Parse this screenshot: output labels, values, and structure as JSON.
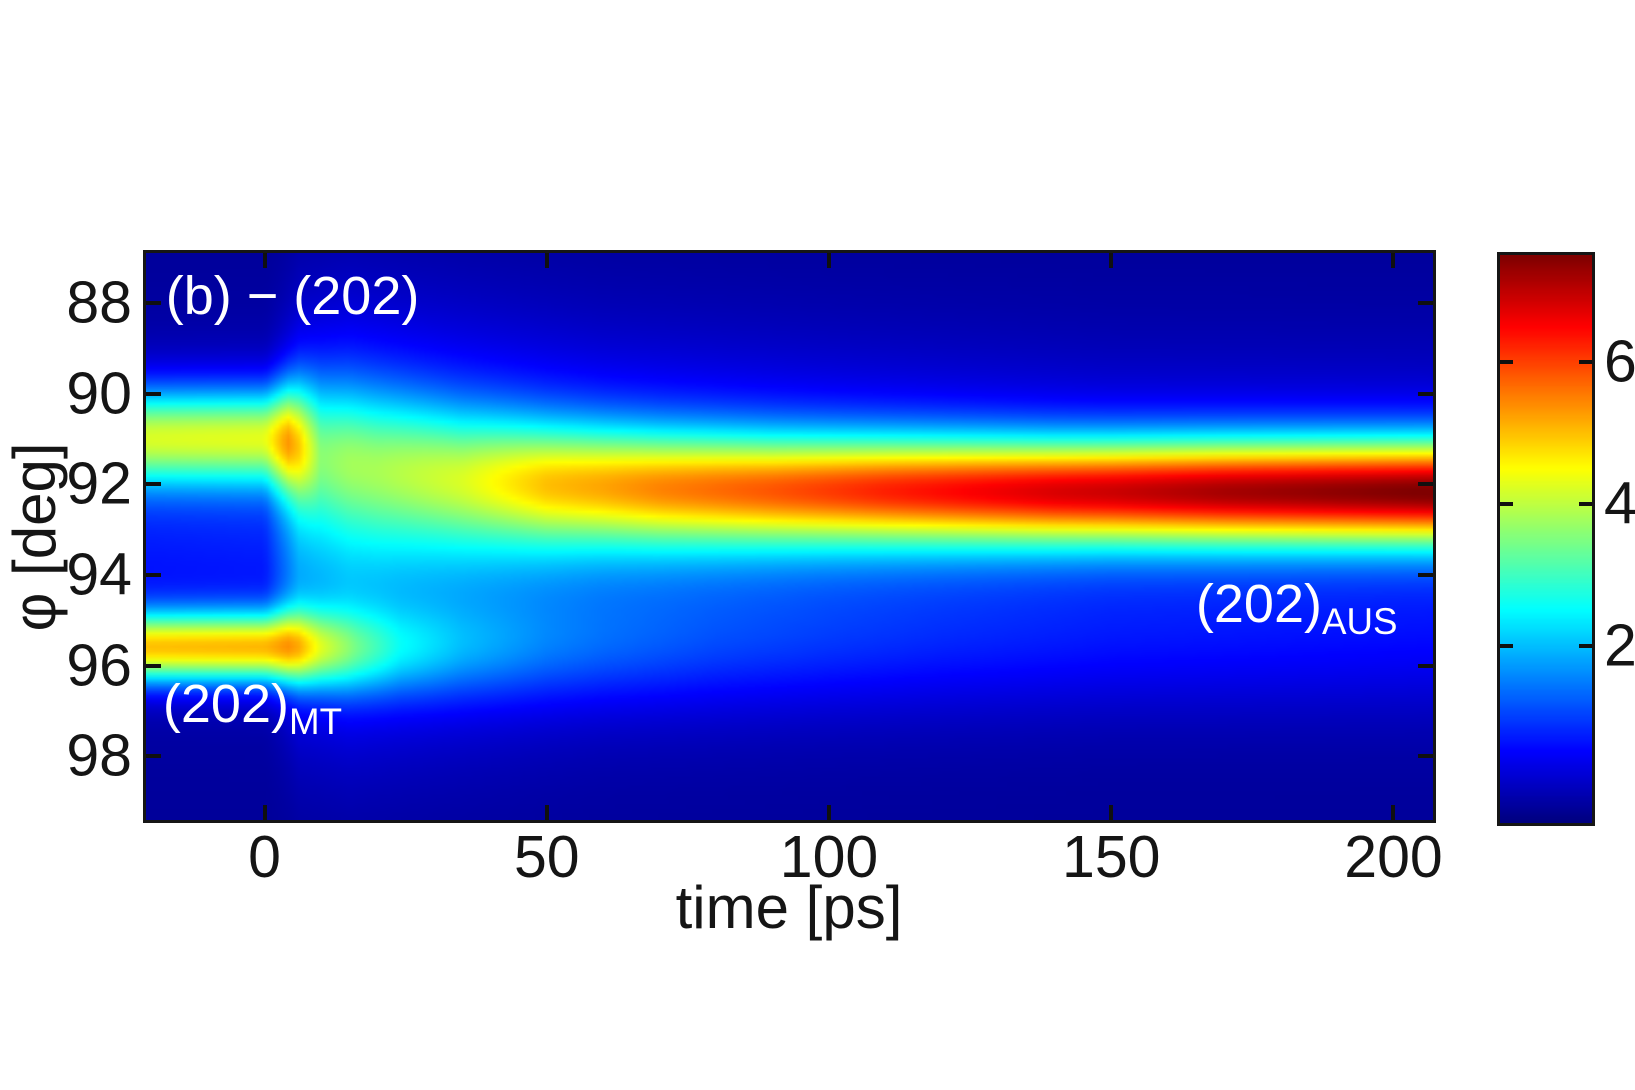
{
  "figure": {
    "background": "#ffffff",
    "frame_color": "#161616",
    "tick_color": "#101010",
    "label_color": "#151515",
    "annotation_color": "#ffffff"
  },
  "chart_data": {
    "type": "heatmap",
    "title_annotation": "(b) − (202)",
    "xlabel": "time [ps]",
    "ylabel": "φ [deg]",
    "x_range_ps": [
      -21,
      207
    ],
    "x_ticks": [
      0,
      50,
      100,
      150,
      200
    ],
    "y_range_deg": [
      86.9,
      99.4
    ],
    "y_ticks": [
      88,
      90,
      92,
      94,
      96,
      98
    ],
    "y_axis_direction": "increases-downward",
    "grid": false,
    "colormap": "jet",
    "colorbar": {
      "position": "right",
      "vmin": -0.5,
      "vmax": 7.5,
      "ticks": [
        6,
        4,
        2
      ]
    },
    "annotations": {
      "title": {
        "text": "(b) − (202)",
        "t_ps": -17.5,
        "phi_deg": 87.25
      },
      "aus": {
        "main": "(202)",
        "sub": "AUS",
        "t_ps": 165,
        "phi_deg": 94.05
      },
      "mt": {
        "main": "(202)",
        "sub": "MT",
        "t_ps": -18,
        "phi_deg": 96.25
      }
    },
    "intensity_model": {
      "description": "I(t,phi) = baseline + sum of Gaussian bands amp*exp(-0.5*((phi-center)/sigma)^2); band parameters linearly interpolated between keyframe times (ps)",
      "baseline": -0.3,
      "bands": [
        {
          "name": "austenite-202-peak",
          "t": [
            -21,
            0,
            4,
            10,
            20,
            35,
            50,
            70,
            90,
            110,
            140,
            170,
            207
          ],
          "center": [
            90.95,
            90.95,
            91.0,
            91.2,
            91.5,
            91.8,
            91.95,
            92.05,
            92.1,
            92.12,
            92.15,
            92.15,
            92.15
          ],
          "sigma": [
            0.75,
            0.75,
            0.85,
            1.05,
            1.08,
            1.0,
            0.92,
            0.87,
            0.84,
            0.82,
            0.8,
            0.8,
            0.8
          ],
          "amp": [
            3.85,
            3.9,
            4.3,
            1.95,
            2.05,
            2.55,
            3.5,
            4.15,
            4.65,
            5.2,
            5.9,
            6.4,
            6.8
          ]
        },
        {
          "name": "martensite-202-peak",
          "t": [
            -21,
            0,
            4,
            10,
            16,
            24,
            35,
            50,
            80,
            120,
            207
          ],
          "center": [
            95.6,
            95.6,
            95.6,
            95.65,
            95.68,
            95.7,
            95.7,
            95.7,
            95.7,
            95.7,
            95.7
          ],
          "sigma": [
            0.55,
            0.55,
            0.58,
            0.62,
            0.66,
            0.7,
            0.75,
            0.8,
            0.9,
            0.95,
            1.0
          ],
          "amp": [
            4.85,
            4.9,
            4.7,
            3.2,
            2.3,
            1.5,
            1.05,
            0.75,
            0.5,
            0.38,
            0.3
          ]
        },
        {
          "name": "diffuse-background",
          "t": [
            -21,
            0,
            6,
            15,
            30,
            60,
            100,
            150,
            207
          ],
          "center": [
            92.9,
            92.9,
            92.9,
            92.9,
            92.9,
            92.9,
            92.9,
            92.9,
            92.9
          ],
          "sigma": [
            2.1,
            2.1,
            2.6,
            2.7,
            2.6,
            2.4,
            2.3,
            2.2,
            2.2
          ],
          "amp": [
            1.0,
            1.05,
            2.2,
            2.4,
            2.2,
            1.8,
            1.5,
            1.2,
            1.1
          ]
        }
      ]
    }
  }
}
